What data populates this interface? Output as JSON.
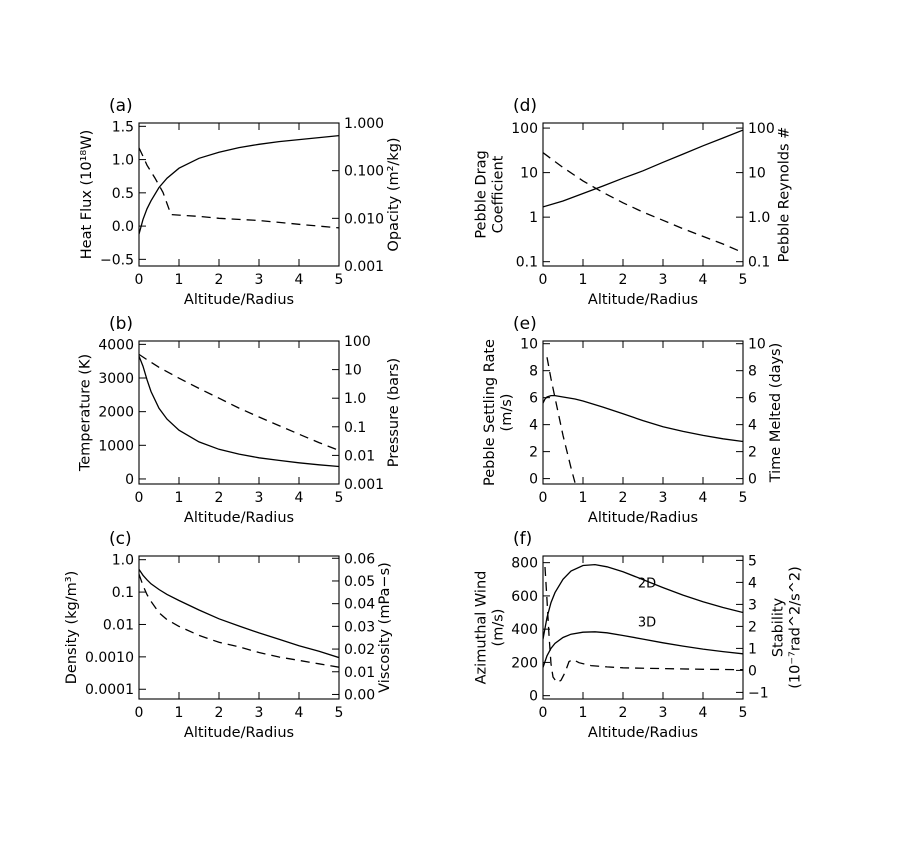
{
  "chart_data": [
    {
      "id": "a",
      "type": "line",
      "panel_label": "(a)",
      "xlabel": "Altitude/Radius",
      "xlim": [
        0,
        5
      ],
      "xticks": [
        0,
        1,
        2,
        3,
        4,
        5
      ],
      "xtick_labels": [
        "0",
        "1",
        "2",
        "3",
        "4",
        "5"
      ],
      "left_axis": {
        "label_lines": [
          "Heat Flux (10¹⁸W)"
        ],
        "scale": "linear",
        "range": [
          -0.6,
          1.55
        ],
        "ticks": [
          -0.5,
          0.0,
          0.5,
          1.0,
          1.5
        ],
        "tick_labels": [
          "−0.5",
          "0.0",
          "0.5",
          "1.0",
          "1.5"
        ]
      },
      "right_axis": {
        "label_lines": [
          "Opacity (m²/kg)"
        ],
        "scale": "log",
        "range": [
          0.001,
          1.0
        ],
        "ticks": [
          0.001,
          0.01,
          0.1,
          1.0
        ],
        "tick_labels": [
          "0.001",
          "0.010",
          "0.100",
          "1.000"
        ]
      },
      "series": [
        {
          "name": "Heat Flux",
          "style": "solid",
          "axis": "left",
          "x": [
            0,
            0.1,
            0.2,
            0.3,
            0.5,
            0.7,
            1.0,
            1.5,
            2.0,
            2.5,
            3.0,
            3.5,
            4.0,
            4.5,
            5.0
          ],
          "y": [
            -0.12,
            0.1,
            0.26,
            0.38,
            0.58,
            0.72,
            0.87,
            1.02,
            1.11,
            1.18,
            1.23,
            1.27,
            1.3,
            1.33,
            1.36
          ]
        },
        {
          "name": "Opacity",
          "style": "dashed",
          "axis": "right",
          "x": [
            0,
            0.1,
            0.2,
            0.4,
            0.6,
            0.8,
            1.5,
            2.0,
            3.0,
            4.0,
            5.0
          ],
          "y": [
            0.3,
            0.2,
            0.13,
            0.07,
            0.035,
            0.012,
            0.011,
            0.01,
            0.009,
            0.0075,
            0.0063
          ]
        }
      ]
    },
    {
      "id": "b",
      "type": "line",
      "panel_label": "(b)",
      "xlabel": "Altitude/Radius",
      "xlim": [
        0,
        5
      ],
      "xticks": [
        0,
        1,
        2,
        3,
        4,
        5
      ],
      "xtick_labels": [
        "0",
        "1",
        "2",
        "3",
        "4",
        "5"
      ],
      "left_axis": {
        "label_lines": [
          "Temperature (K)"
        ],
        "scale": "linear",
        "range": [
          -150,
          4100
        ],
        "ticks": [
          0,
          1000,
          2000,
          3000,
          4000
        ],
        "tick_labels": [
          "0",
          "1000",
          "2000",
          "3000",
          "4000"
        ]
      },
      "right_axis": {
        "label_lines": [
          "Pressure (bars)"
        ],
        "scale": "log",
        "range": [
          0.001,
          100
        ],
        "ticks": [
          0.001,
          0.01,
          0.1,
          1.0,
          10,
          100
        ],
        "tick_labels": [
          "0.001",
          "0.01",
          "0.1",
          "1.0",
          "10",
          "100"
        ]
      },
      "series": [
        {
          "name": "Temperature",
          "style": "solid",
          "axis": "left",
          "x": [
            0,
            0.1,
            0.2,
            0.3,
            0.5,
            0.7,
            1.0,
            1.5,
            2.0,
            2.5,
            3.0,
            3.5,
            4.0,
            4.5,
            5.0
          ],
          "y": [
            3650,
            3350,
            2950,
            2600,
            2100,
            1780,
            1450,
            1100,
            880,
            740,
            630,
            550,
            480,
            420,
            370
          ]
        },
        {
          "name": "Pressure",
          "style": "dashed",
          "axis": "right",
          "x": [
            0,
            0.25,
            0.5,
            1.0,
            1.5,
            2.0,
            2.5,
            3.0,
            3.5,
            4.0,
            4.5,
            5.0
          ],
          "y": [
            34,
            20,
            12,
            5.0,
            2.2,
            1.0,
            0.45,
            0.22,
            0.11,
            0.055,
            0.028,
            0.015
          ]
        }
      ]
    },
    {
      "id": "c",
      "type": "line",
      "panel_label": "(c)",
      "xlabel": "Altitude/Radius",
      "xlim": [
        0,
        5
      ],
      "xticks": [
        0,
        1,
        2,
        3,
        4,
        5
      ],
      "xtick_labels": [
        "0",
        "1",
        "2",
        "3",
        "4",
        "5"
      ],
      "left_axis": {
        "label_lines": [
          "Density (kg/m³)"
        ],
        "scale": "log",
        "range": [
          5e-05,
          1.3
        ],
        "ticks": [
          0.0001,
          0.001,
          0.01,
          0.1,
          1.0
        ],
        "tick_labels": [
          "0.0001",
          "0.0010",
          "0.01",
          "0.1",
          "1.0"
        ]
      },
      "right_axis": {
        "label_lines": [
          "Viscosity (mPa−s)"
        ],
        "scale": "linear",
        "range": [
          -0.002,
          0.061
        ],
        "ticks": [
          0.0,
          0.01,
          0.02,
          0.03,
          0.04,
          0.05,
          0.06
        ],
        "tick_labels": [
          "0.00",
          "0.01",
          "0.02",
          "0.03",
          "0.04",
          "0.05",
          "0.06"
        ]
      },
      "series": [
        {
          "name": "Density",
          "style": "solid",
          "axis": "left",
          "x": [
            0,
            0.1,
            0.2,
            0.3,
            0.5,
            0.7,
            1.0,
            1.5,
            2.0,
            2.5,
            3.0,
            3.5,
            4.0,
            4.5,
            5.0
          ],
          "y": [
            0.5,
            0.33,
            0.24,
            0.18,
            0.12,
            0.085,
            0.055,
            0.028,
            0.015,
            0.009,
            0.0055,
            0.0035,
            0.0022,
            0.0015,
            0.00095
          ]
        },
        {
          "name": "Viscosity",
          "style": "dashed",
          "axis": "right",
          "x": [
            0,
            0.1,
            0.2,
            0.3,
            0.5,
            0.7,
            1.0,
            1.5,
            2.0,
            2.5,
            3.0,
            3.5,
            4.0,
            4.5,
            5.0
          ],
          "y": [
            0.053,
            0.048,
            0.044,
            0.041,
            0.036,
            0.033,
            0.03,
            0.026,
            0.023,
            0.021,
            0.0185,
            0.0165,
            0.015,
            0.0135,
            0.012
          ]
        }
      ]
    },
    {
      "id": "d",
      "type": "line",
      "panel_label": "(d)",
      "xlabel": "Altitude/Radius",
      "xlim": [
        0,
        5
      ],
      "xticks": [
        0,
        1,
        2,
        3,
        4,
        5
      ],
      "xtick_labels": [
        "0",
        "1",
        "2",
        "3",
        "4",
        "5"
      ],
      "left_axis": {
        "label_lines": [
          "Pebble Drag",
          "Coefficient"
        ],
        "scale": "log",
        "range": [
          0.08,
          130
        ],
        "ticks": [
          0.1,
          1,
          10,
          100
        ],
        "tick_labels": [
          "0.1",
          "1",
          "10",
          "100"
        ]
      },
      "right_axis": {
        "label_lines": [
          "Pebble Reynolds #"
        ],
        "scale": "log",
        "range": [
          0.08,
          130
        ],
        "ticks": [
          0.1,
          1.0,
          10,
          100
        ],
        "tick_labels": [
          "0.1",
          "1.0",
          "10",
          "100"
        ]
      },
      "series": [
        {
          "name": "Pebble Drag Coefficient",
          "style": "solid",
          "axis": "left",
          "x": [
            0,
            0.5,
            1.0,
            1.5,
            2.0,
            2.5,
            3.0,
            3.5,
            4.0,
            4.5,
            5.0
          ],
          "y": [
            1.7,
            2.3,
            3.4,
            5.0,
            7.5,
            11,
            17,
            26,
            40,
            60,
            90
          ]
        },
        {
          "name": "Pebble Reynolds #",
          "style": "dashed",
          "axis": "right",
          "x": [
            0,
            0.5,
            1.0,
            1.5,
            2.0,
            2.5,
            3.0,
            3.5,
            4.0,
            4.5,
            5.0
          ],
          "y": [
            28,
            13,
            6.5,
            3.6,
            2.1,
            1.3,
            0.85,
            0.55,
            0.37,
            0.25,
            0.16
          ]
        }
      ]
    },
    {
      "id": "e",
      "type": "line",
      "panel_label": "(e)",
      "xlabel": "Altitude/Radius",
      "xlim": [
        0,
        5
      ],
      "xticks": [
        0,
        1,
        2,
        3,
        4,
        5
      ],
      "xtick_labels": [
        "0",
        "1",
        "2",
        "3",
        "4",
        "5"
      ],
      "left_axis": {
        "label_lines": [
          "Pebble Settling Rate",
          "(m/s)"
        ],
        "scale": "linear",
        "range": [
          -0.4,
          10.2
        ],
        "ticks": [
          0,
          2,
          4,
          6,
          8,
          10
        ],
        "tick_labels": [
          "0",
          "2",
          "4",
          "6",
          "8",
          "10"
        ]
      },
      "right_axis": {
        "label_lines": [
          "Time Melted (days)"
        ],
        "scale": "linear",
        "range": [
          -0.4,
          10.2
        ],
        "ticks": [
          0,
          2,
          4,
          6,
          8,
          10
        ],
        "tick_labels": [
          "0",
          "2",
          "4",
          "6",
          "8",
          "10"
        ]
      },
      "series": [
        {
          "name": "Pebble Settling Rate",
          "style": "solid",
          "axis": "left",
          "x": [
            0,
            0.05,
            0.1,
            0.2,
            0.3,
            0.5,
            0.8,
            1.0,
            1.5,
            2.0,
            2.5,
            3.0,
            3.5,
            4.0,
            4.5,
            5.0
          ],
          "y": [
            5.6,
            5.9,
            6.05,
            6.15,
            6.15,
            6.05,
            5.9,
            5.75,
            5.3,
            4.8,
            4.3,
            3.85,
            3.5,
            3.2,
            2.95,
            2.75
          ]
        },
        {
          "name": "Time Melted",
          "style": "dashed",
          "axis": "right",
          "x": [
            0.1,
            0.2,
            0.3,
            0.4,
            0.5,
            0.6,
            0.7,
            0.8
          ],
          "y": [
            9.0,
            7.4,
            6.0,
            4.6,
            3.2,
            2.0,
            0.8,
            -0.3
          ]
        }
      ]
    },
    {
      "id": "f",
      "type": "line",
      "panel_label": "(f)",
      "xlabel": "Altitude/Radius",
      "xlim": [
        0,
        5
      ],
      "xticks": [
        0,
        1,
        2,
        3,
        4,
        5
      ],
      "xtick_labels": [
        "0",
        "1",
        "2",
        "3",
        "4",
        "5"
      ],
      "left_axis": {
        "label_lines": [
          "Azimuthal Wind",
          "(m/s)"
        ],
        "scale": "linear",
        "range": [
          -20,
          840
        ],
        "ticks": [
          0,
          200,
          400,
          600,
          800
        ],
        "tick_labels": [
          "0",
          "200",
          "400",
          "600",
          "800"
        ]
      },
      "right_axis": {
        "label_lines": [
          "Stability",
          "(10⁻⁷rad^2/s^2)"
        ],
        "scale": "linear",
        "range": [
          -1.3,
          5.2
        ],
        "ticks": [
          -1,
          0,
          1,
          2,
          3,
          4,
          5
        ],
        "tick_labels": [
          "−1",
          "0",
          "1",
          "2",
          "3",
          "4",
          "5"
        ]
      },
      "annotations": [
        {
          "text": "2D",
          "x": 2.6,
          "y": 650,
          "axis": "left"
        },
        {
          "text": "3D",
          "x": 2.6,
          "y": 415,
          "axis": "left"
        }
      ],
      "series": [
        {
          "name": "Azimuthal Wind 2D",
          "style": "solid",
          "axis": "left",
          "x": [
            0,
            0.1,
            0.2,
            0.3,
            0.5,
            0.7,
            1.0,
            1.3,
            1.6,
            2.0,
            2.5,
            3.0,
            3.5,
            4.0,
            4.5,
            5.0
          ],
          "y": [
            340,
            470,
            560,
            620,
            700,
            750,
            783,
            788,
            775,
            745,
            698,
            650,
            605,
            565,
            530,
            500
          ]
        },
        {
          "name": "Azimuthal Wind 3D",
          "style": "solid",
          "axis": "left",
          "x": [
            0,
            0.1,
            0.2,
            0.3,
            0.5,
            0.7,
            1.0,
            1.3,
            1.6,
            2.0,
            2.5,
            3.0,
            3.5,
            4.0,
            4.5,
            5.0
          ],
          "y": [
            170,
            240,
            285,
            315,
            350,
            370,
            382,
            384,
            378,
            362,
            340,
            318,
            298,
            280,
            265,
            252
          ]
        },
        {
          "name": "Stability",
          "style": "dashed",
          "axis": "right",
          "x": [
            0.05,
            0.1,
            0.15,
            0.2,
            0.25,
            0.35,
            0.45,
            0.55,
            0.65,
            0.75,
            0.9,
            1.2,
            1.6,
            2.0,
            3.0,
            4.0,
            5.0
          ],
          "y": [
            4.7,
            3.2,
            1.6,
            0.3,
            -0.3,
            -0.55,
            -0.45,
            -0.1,
            0.4,
            0.5,
            0.35,
            0.22,
            0.16,
            0.12,
            0.08,
            0.05,
            0.03
          ]
        }
      ]
    }
  ]
}
